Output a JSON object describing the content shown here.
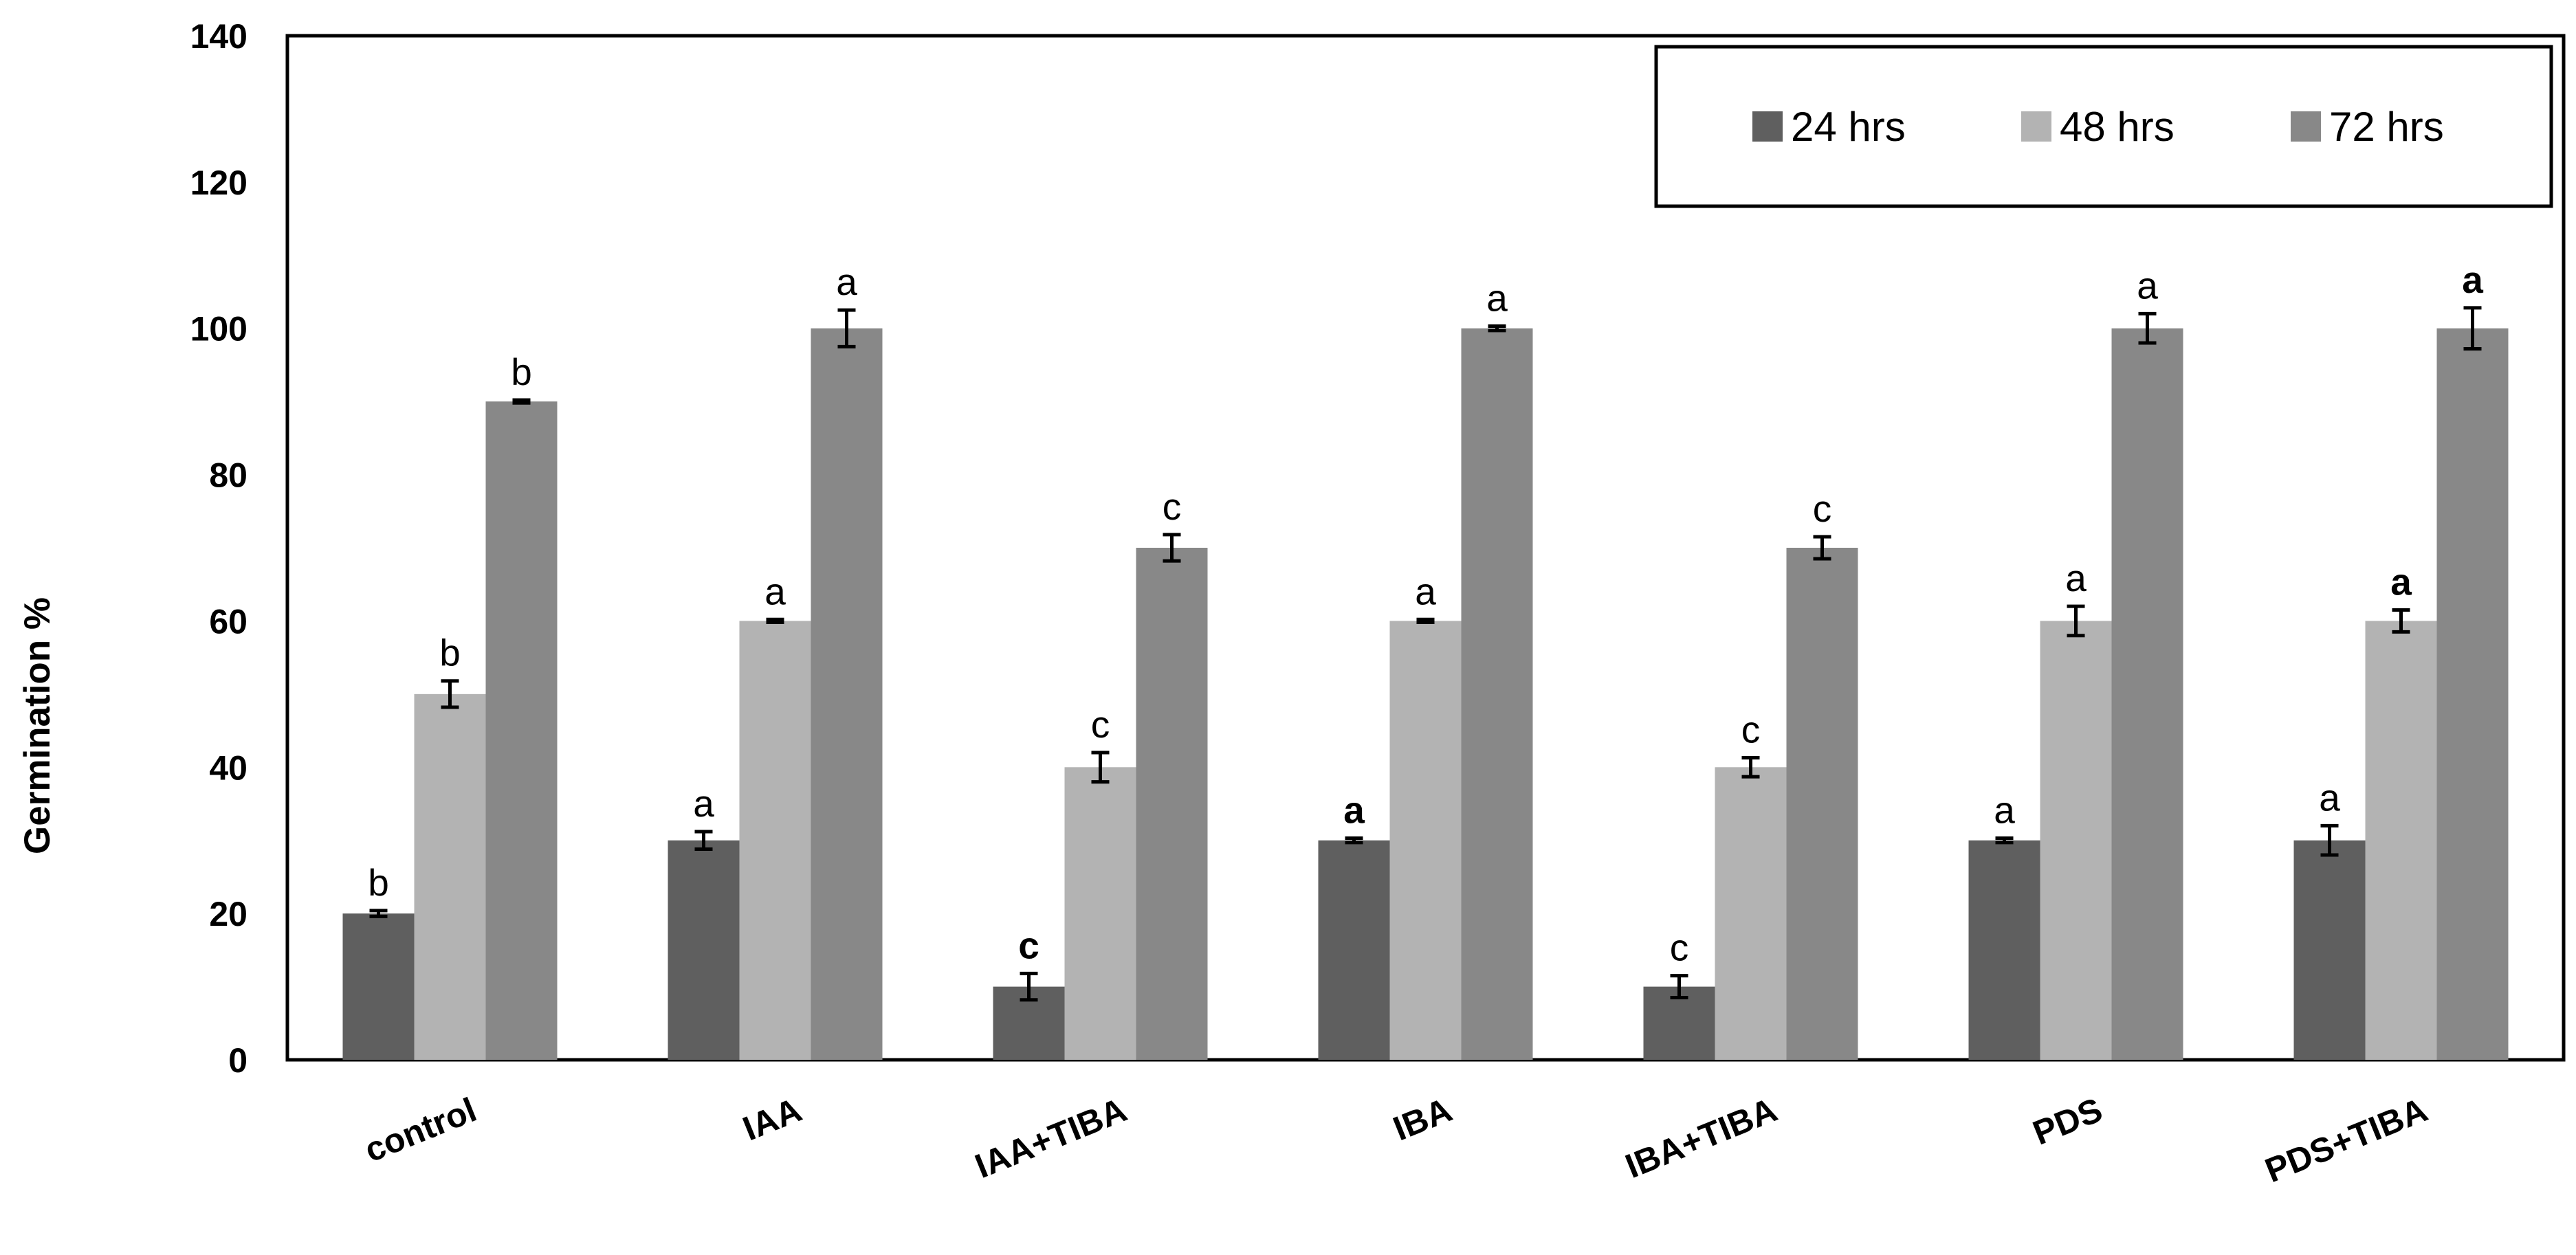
{
  "chart_data": {
    "type": "bar",
    "title": "",
    "xlabel": "",
    "ylabel": "Germination %",
    "ylim": [
      0,
      140
    ],
    "yticks": [
      "0",
      "20",
      "40",
      "60",
      "80",
      "100",
      "120",
      "140"
    ],
    "categories": [
      "control",
      "IAA",
      "IAA+TIBA",
      "IBA",
      "IBA+TIBA",
      "PDS",
      "PDS+TIBA"
    ],
    "series": [
      {
        "name": "24 hrs",
        "color": "#5f5f5f",
        "values": [
          20,
          30,
          10,
          30,
          10,
          30,
          30
        ],
        "errors": [
          0.4,
          1.2,
          1.8,
          0.3,
          1.5,
          0.3,
          2.0
        ],
        "letters": [
          "b",
          "a",
          "c",
          "a",
          "c",
          "a",
          "a"
        ],
        "letters_bold": [
          false,
          false,
          true,
          true,
          false,
          false,
          false
        ]
      },
      {
        "name": "48 hrs",
        "color": "#b3b3b3",
        "values": [
          50,
          60,
          40,
          60,
          40,
          60,
          60
        ],
        "errors": [
          1.8,
          0.2,
          2.0,
          0.2,
          1.3,
          2.0,
          1.5
        ],
        "letters": [
          "b",
          "a",
          "c",
          "a",
          "c",
          "a",
          "a"
        ],
        "letters_bold": [
          false,
          false,
          false,
          false,
          false,
          false,
          true
        ]
      },
      {
        "name": "72 hrs",
        "color": "#888888",
        "values": [
          90,
          100,
          70,
          100,
          70,
          100,
          100
        ],
        "errors": [
          0.2,
          2.5,
          1.8,
          0.3,
          1.5,
          2.0,
          2.8
        ],
        "letters": [
          "b",
          "a",
          "c",
          "a",
          "c",
          "a",
          "a"
        ],
        "letters_bold": [
          false,
          false,
          false,
          false,
          false,
          false,
          true
        ]
      }
    ],
    "grid": false,
    "legend": "top-right, boxed"
  }
}
